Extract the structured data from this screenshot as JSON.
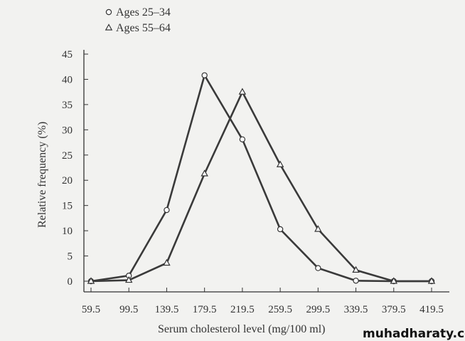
{
  "chart_data": {
    "type": "line",
    "title": "",
    "xlabel": "Serum cholesterol level (mg/100 ml)",
    "ylabel": "Relative frequency (%)",
    "x": [
      59.5,
      99.5,
      139.5,
      179.5,
      219.5,
      259.5,
      299.5,
      339.5,
      379.5,
      419.5
    ],
    "x_tick_labels": [
      "59.5",
      "99.5",
      "139.5",
      "179.5",
      "219.5",
      "259.5",
      "299.5",
      "339.5",
      "379.5",
      "419.5"
    ],
    "y_ticks": [
      0,
      5,
      10,
      15,
      20,
      25,
      30,
      35,
      40,
      45
    ],
    "ylim": [
      0,
      45
    ],
    "grid": false,
    "legend_position": "top-left",
    "series": [
      {
        "name": "Ages 25–34",
        "marker": "circle",
        "values": [
          0,
          1.1,
          14.1,
          40.8,
          28.1,
          10.3,
          2.6,
          0.1,
          0,
          0
        ]
      },
      {
        "name": "Ages 55–64",
        "marker": "triangle",
        "values": [
          0,
          0.2,
          3.6,
          21.3,
          37.5,
          23.1,
          10.3,
          2.2,
          0,
          0
        ]
      }
    ]
  },
  "watermark": "muhadharaty.com"
}
